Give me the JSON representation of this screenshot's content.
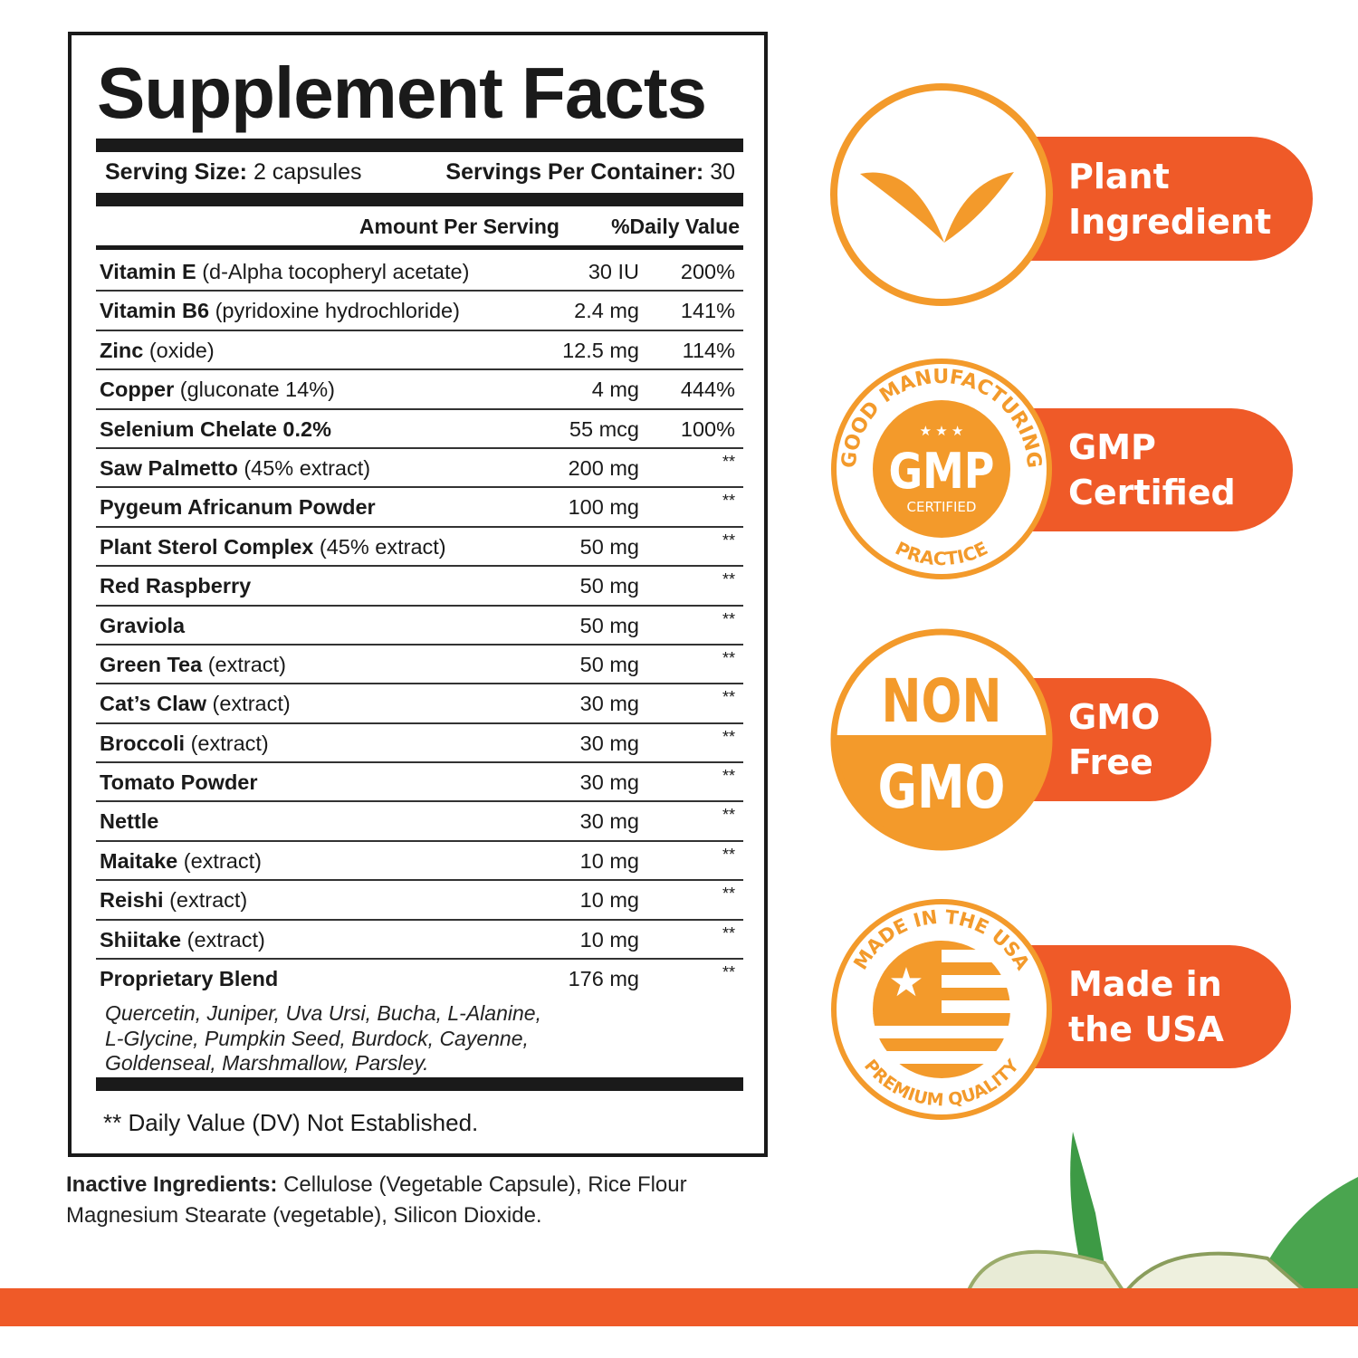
{
  "title": "Supplement Facts",
  "serving": {
    "size_label": "Serving Size:",
    "size_value": "2 capsules",
    "per_container_label": "Servings Per Container:",
    "per_container_value": "30"
  },
  "headers": {
    "amount": "Amount Per Serving",
    "dv": "%Daily Value"
  },
  "rows": [
    {
      "name": "Vitamin E",
      "detail": "(d-Alpha tocopheryl acetate)",
      "amount": "30 IU",
      "dv": "200%"
    },
    {
      "name": "Vitamin B6",
      "detail": "(pyridoxine hydrochloride)",
      "amount": "2.4 mg",
      "dv": "141%"
    },
    {
      "name": "Zinc",
      "detail": "(oxide)",
      "amount": "12.5 mg",
      "dv": "114%"
    },
    {
      "name": "Copper",
      "detail": "(gluconate 14%)",
      "amount": "4 mg",
      "dv": "444%"
    },
    {
      "name": "Selenium Chelate 0.2%",
      "detail": "",
      "amount": "55 mcg",
      "dv": "100%"
    },
    {
      "name": "Saw Palmetto",
      "detail": "(45% extract)",
      "amount": "200 mg",
      "dv": "**"
    },
    {
      "name": "Pygeum Africanum Powder",
      "detail": "",
      "amount": "100 mg",
      "dv": "**"
    },
    {
      "name": "Plant Sterol Complex",
      "detail": "(45% extract)",
      "amount": "50 mg",
      "dv": "**"
    },
    {
      "name": "Red Raspberry",
      "detail": "",
      "amount": "50 mg",
      "dv": "**"
    },
    {
      "name": "Graviola",
      "detail": "",
      "amount": "50 mg",
      "dv": "**"
    },
    {
      "name": "Green Tea",
      "detail": "(extract)",
      "amount": "50 mg",
      "dv": "**"
    },
    {
      "name": "Cat’s Claw",
      "detail": "(extract)",
      "amount": "30 mg",
      "dv": "**"
    },
    {
      "name": "Broccoli",
      "detail": "(extract)",
      "amount": "30 mg",
      "dv": "**"
    },
    {
      "name": "Tomato Powder",
      "detail": "",
      "amount": "30 mg",
      "dv": "**"
    },
    {
      "name": "Nettle",
      "detail": "",
      "amount": "30 mg",
      "dv": "**"
    },
    {
      "name": "Maitake",
      "detail": "(extract)",
      "amount": "10 mg",
      "dv": "**"
    },
    {
      "name": "Reishi",
      "detail": "(extract)",
      "amount": "10 mg",
      "dv": "**"
    },
    {
      "name": "Shiitake",
      "detail": "(extract)",
      "amount": "10 mg",
      "dv": "**"
    },
    {
      "name": "Proprietary Blend",
      "detail": "",
      "amount": "176 mg",
      "dv": "**"
    }
  ],
  "blend_lines": [
    "Quercetin, Juniper, Uva Ursi, Bucha, L-Alanine,",
    "L-Glycine, Pumpkin Seed, Burdock, Cayenne,",
    "Goldenseal, Marshmallow, Parsley."
  ],
  "footnote": "** Daily Value (DV) Not Established.",
  "inactive": {
    "label": "Inactive Ingredients:",
    "line1": "Cellulose (Vegetable Capsule), Rice Flour",
    "line2": "Magnesium Stearate (vegetable), Silicon Dioxide."
  },
  "badges": {
    "plant": {
      "line1": "Plant",
      "line2": "Ingredient",
      "icon": "leaf-icon"
    },
    "gmp": {
      "line1": "GMP",
      "line2": "Certified",
      "seal_top": "GOOD MANUFACTURING",
      "seal_bottom": "PRACTICE",
      "seal_center": "GMP",
      "seal_sub": "CERTIFIED"
    },
    "gmo": {
      "line1": "GMO",
      "line2": "Free",
      "seal_top": "NON",
      "seal_bottom": "GMO"
    },
    "usa": {
      "line1": "Made in",
      "line2": "the USA",
      "seal_top": "MADE IN THE USA",
      "seal_bottom": "PREMIUM QUALITY"
    }
  },
  "colors": {
    "orange": "#f39a2b",
    "pill": "#ef5a28",
    "text": "#1a1a1a"
  }
}
